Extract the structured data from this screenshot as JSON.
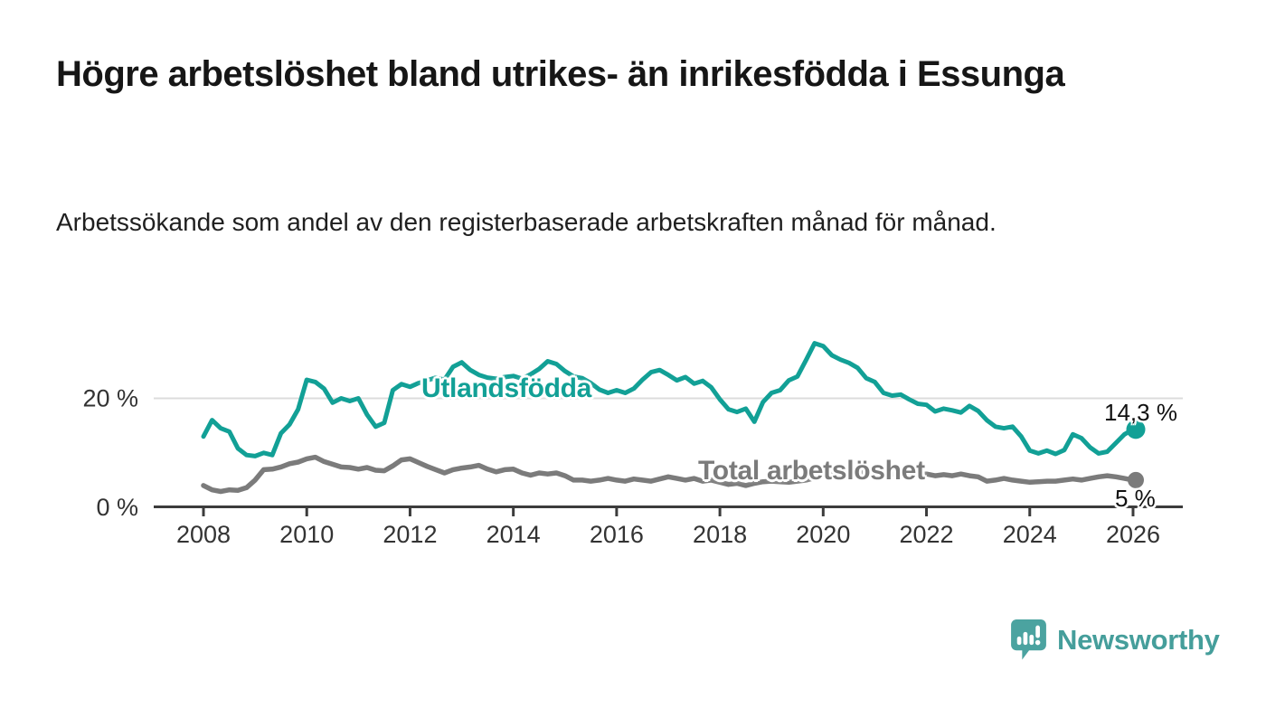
{
  "header": {
    "title": "Högre arbetslöshet bland utrikes- än inrikesfödda i Essunga",
    "subtitle": "Arbetssökande som andel av den registerbaserade arbetskraften månad för månad."
  },
  "chart_data": {
    "type": "line",
    "title": "Högre arbetslöshet bland utrikes- än inrikesfödda i Essunga",
    "subtitle": "Arbetssökande som andel av den registerbaserade arbetskraften månad för månad.",
    "xlabel": "",
    "ylabel": "",
    "unit": "%",
    "x_start_year": 2008,
    "x_step_years": 0.16667,
    "xlim": [
      2007.0,
      2027.0
    ],
    "ylim": [
      0,
      33
    ],
    "grid": "y-gridline-at-20-only",
    "legend_position": "inline-labels-on-lines",
    "x_ticks": [
      2008,
      2010,
      2012,
      2014,
      2016,
      2018,
      2020,
      2022,
      2024,
      2026
    ],
    "y_ticks": [
      {
        "value": 0,
        "label": "0 %"
      },
      {
        "value": 20,
        "label": "20 %"
      }
    ],
    "series": [
      {
        "name": "Utlandsfödda",
        "color": "#12a096",
        "end_value": 14.3,
        "end_label": "14,3 %",
        "values": [
          13.0,
          16.0,
          14.5,
          13.9,
          10.8,
          9.6,
          9.4,
          10.0,
          9.6,
          13.6,
          15.2,
          18.0,
          23.4,
          23.0,
          21.8,
          19.2,
          20.0,
          19.5,
          20.0,
          17.0,
          14.8,
          15.5,
          21.5,
          22.6,
          22.1,
          22.8,
          23.3,
          23.8,
          23.4,
          25.8,
          26.6,
          25.2,
          24.3,
          23.8,
          23.6,
          23.9,
          24.1,
          23.6,
          24.4,
          25.4,
          26.8,
          26.3,
          25.0,
          24.0,
          23.7,
          22.8,
          21.6,
          21.0,
          21.5,
          21.0,
          21.8,
          23.4,
          24.8,
          25.2,
          24.3,
          23.3,
          23.9,
          22.7,
          23.2,
          22.0,
          19.8,
          18.0,
          17.5,
          18.1,
          15.7,
          19.3,
          21.0,
          21.5,
          23.3,
          24.0,
          27.0,
          30.1,
          29.6,
          27.9,
          27.1,
          26.5,
          25.6,
          23.7,
          23.0,
          21.0,
          20.5,
          20.7,
          19.8,
          19.0,
          18.8,
          17.6,
          18.1,
          17.8,
          17.4,
          18.6,
          17.7,
          16.0,
          14.8,
          14.5,
          14.8,
          13.0,
          10.4,
          9.9,
          10.4,
          9.8,
          10.5,
          13.4,
          12.7,
          11.0,
          9.9,
          10.2,
          11.8,
          13.4,
          14.3
        ]
      },
      {
        "name": "Total arbetslöshet",
        "color": "#7b7b7b",
        "end_value": 5,
        "end_label": "5 %",
        "values": [
          4.0,
          3.2,
          2.9,
          3.2,
          3.1,
          3.6,
          5.0,
          6.9,
          7.0,
          7.4,
          8.0,
          8.3,
          8.9,
          9.2,
          8.4,
          7.9,
          7.4,
          7.3,
          7.0,
          7.3,
          6.8,
          6.7,
          7.6,
          8.7,
          8.9,
          8.2,
          7.5,
          6.9,
          6.3,
          6.9,
          7.2,
          7.4,
          7.7,
          7.0,
          6.5,
          6.9,
          7.0,
          6.3,
          5.9,
          6.3,
          6.1,
          6.3,
          5.8,
          5.0,
          5.0,
          4.8,
          5.0,
          5.3,
          5.0,
          4.8,
          5.2,
          5.0,
          4.8,
          5.2,
          5.6,
          5.3,
          5.0,
          5.3,
          4.8,
          5.0,
          4.6,
          4.2,
          4.4,
          4.0,
          4.4,
          4.7,
          4.8,
          4.7,
          4.6,
          4.8,
          5.0,
          5.4,
          6.0,
          6.6,
          7.0,
          6.8,
          6.6,
          6.4,
          6.3,
          6.2,
          6.1,
          6.0,
          6.1,
          6.1,
          6.1,
          5.8,
          6.0,
          5.8,
          6.1,
          5.8,
          5.6,
          4.8,
          5.0,
          5.3,
          5.0,
          4.8,
          4.6,
          4.7,
          4.8,
          4.8,
          5.0,
          5.2,
          5.0,
          5.3,
          5.6,
          5.8,
          5.6,
          5.3,
          5.0
        ]
      }
    ]
  },
  "colors": {
    "accent_teal": "#12a096",
    "series_gray": "#7b7b7b",
    "axis": "#3c3c3c",
    "tick_text": "#333333",
    "gridline": "#dcdcdc",
    "logo_teal": "#4ba3a0"
  },
  "footer": {
    "brand": "Newsworthy",
    "logo_icon": "speech-bubble-bar-chart-icon"
  }
}
